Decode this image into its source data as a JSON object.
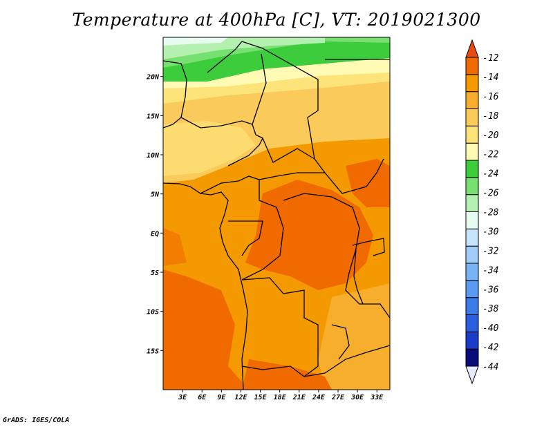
{
  "title": "Temperature at 400hPa [C], VT: 2019021300",
  "credit": "GrADS: IGES/COLA",
  "map": {
    "lon_range": [
      0,
      35
    ],
    "lat_range": [
      -20,
      25
    ],
    "lon_ticks": [
      {
        "value": 3,
        "label": "3E"
      },
      {
        "value": 6,
        "label": "6E"
      },
      {
        "value": 9,
        "label": "9E"
      },
      {
        "value": 12,
        "label": "12E"
      },
      {
        "value": 15,
        "label": "15E"
      },
      {
        "value": 18,
        "label": "18E"
      },
      {
        "value": 21,
        "label": "21E"
      },
      {
        "value": 24,
        "label": "24E"
      },
      {
        "value": 27,
        "label": "27E"
      },
      {
        "value": 30,
        "label": "30E"
      },
      {
        "value": 33,
        "label": "33E"
      }
    ],
    "lat_ticks": [
      {
        "value": 20,
        "label": "20N"
      },
      {
        "value": 15,
        "label": "15N"
      },
      {
        "value": 10,
        "label": "10N"
      },
      {
        "value": 5,
        "label": "5N"
      },
      {
        "value": 0,
        "label": "EQ"
      },
      {
        "value": -5,
        "label": "5S"
      },
      {
        "value": -10,
        "label": "10S"
      },
      {
        "value": -15,
        "label": "15S"
      }
    ]
  },
  "colorbar": {
    "colors": [
      "#e8e8ff",
      "#0a0a78",
      "#1a3cc8",
      "#2c5ee0",
      "#3c7ce8",
      "#5a9af0",
      "#78b4f4",
      "#a0cef8",
      "#c8e4fc",
      "#e8fbf0",
      "#b4f0b0",
      "#78e070",
      "#3ccc3c",
      "#fffab4",
      "#fce37a",
      "#faca5a",
      "#f6ae2c",
      "#f49a00",
      "#f06a00",
      "#e84c10"
    ],
    "labels": [
      "-44",
      "-42",
      "-40",
      "-38",
      "-36",
      "-34",
      "-32",
      "-30",
      "-28",
      "-26",
      "-24",
      "-22",
      "-20",
      "-18",
      "-16",
      "-14",
      "-12"
    ]
  }
}
